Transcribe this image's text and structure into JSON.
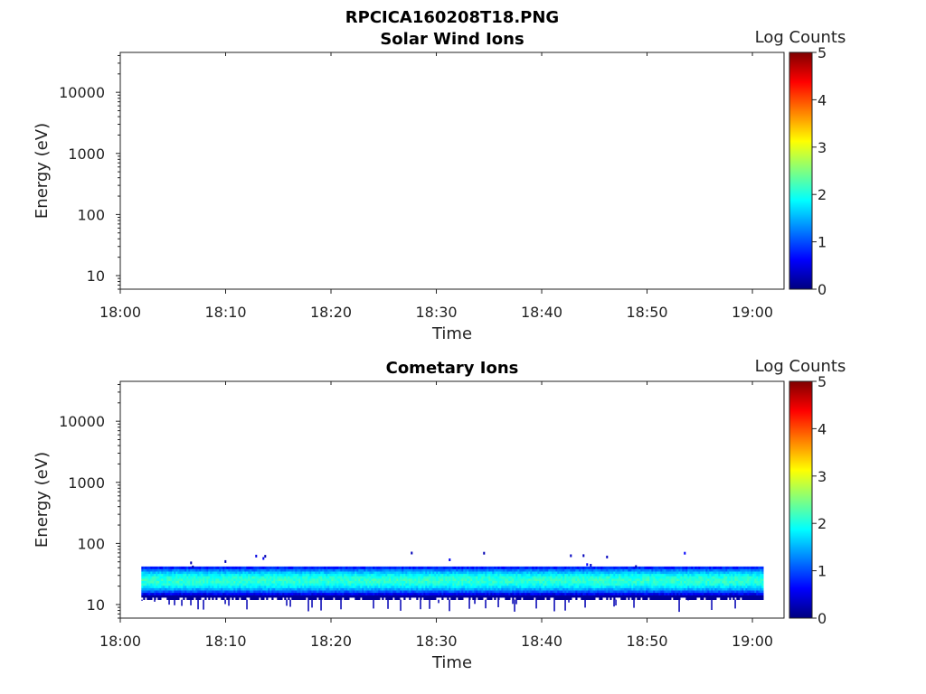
{
  "figure_title": "RPCICA160208T18.PNG",
  "chart_data": [
    {
      "type": "heatmap",
      "title": "Solar Wind Ions",
      "xlabel": "Time",
      "ylabel": "Energy (eV)",
      "x_ticks": [
        "18:00",
        "18:10",
        "18:20",
        "18:30",
        "18:40",
        "18:50",
        "19:00"
      ],
      "y_ticks": [
        "10",
        "100",
        "1000",
        "10000"
      ],
      "y_scale": "log",
      "x_range": [
        "18:00",
        "19:03"
      ],
      "y_range": [
        6,
        45000
      ],
      "colorbar": {
        "label": "Log Counts",
        "ticks": [
          "0",
          "1",
          "2",
          "3",
          "4",
          "5"
        ],
        "range": [
          0,
          5
        ],
        "colormap": "jet"
      },
      "data": {
        "time_range": null,
        "energy_range": null,
        "log_counts_peak": null
      }
    },
    {
      "type": "heatmap",
      "title": "Cometary Ions",
      "xlabel": "Time",
      "ylabel": "Energy (eV)",
      "x_ticks": [
        "18:00",
        "18:10",
        "18:20",
        "18:30",
        "18:40",
        "18:50",
        "19:00"
      ],
      "y_ticks": [
        "10",
        "100",
        "1000",
        "10000"
      ],
      "y_scale": "log",
      "x_range": [
        "18:00",
        "19:03"
      ],
      "y_range": [
        6,
        45000
      ],
      "colorbar": {
        "label": "Log Counts",
        "ticks": [
          "0",
          "1",
          "2",
          "3",
          "4",
          "5"
        ],
        "range": [
          0,
          5
        ],
        "colormap": "jet"
      },
      "data": {
        "time_range": [
          "18:02",
          "19:01"
        ],
        "energy_range": [
          12,
          42
        ],
        "peak_energy": 25,
        "log_counts_peak": 2.1,
        "sparse_energy_max": 80
      }
    }
  ]
}
